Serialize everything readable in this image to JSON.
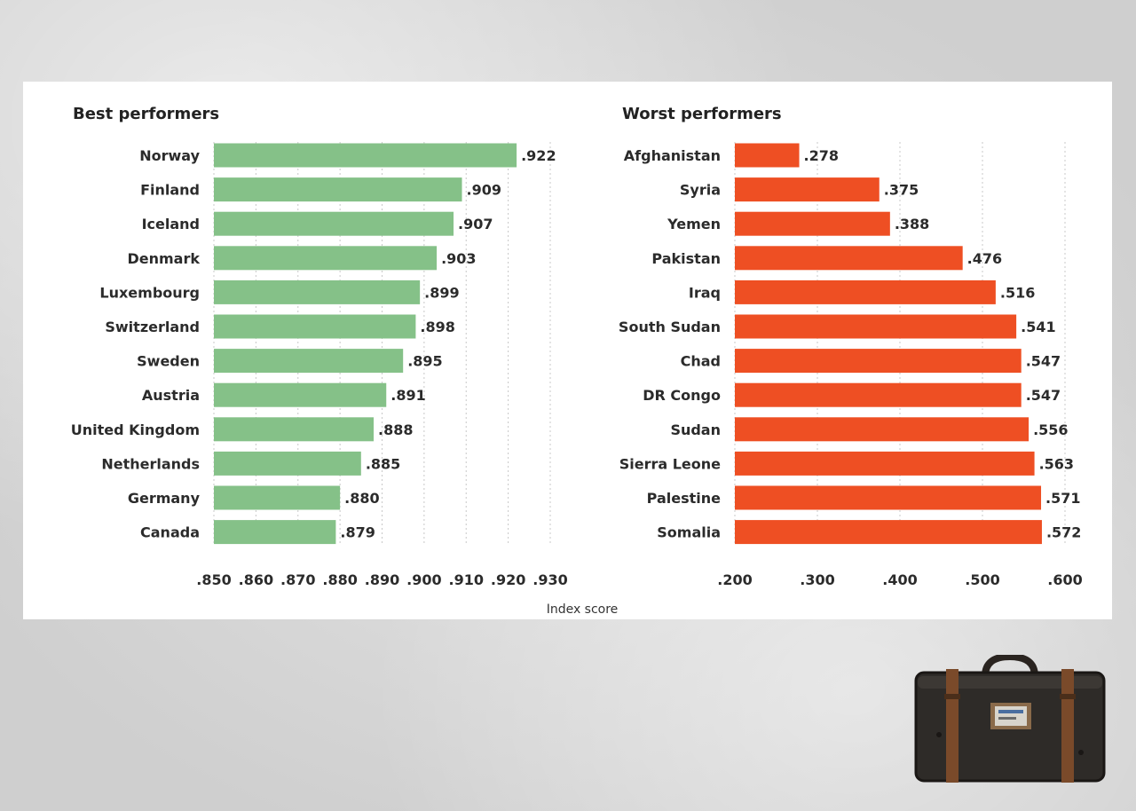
{
  "colors": {
    "best": "#85c188",
    "worst": "#ee4f23"
  },
  "chart_data": [
    {
      "type": "bar",
      "orientation": "horizontal",
      "title": "Best performers",
      "categories": [
        "Norway",
        "Finland",
        "Iceland",
        "Denmark",
        "Luxembourg",
        "Switzerland",
        "Sweden",
        "Austria",
        "United Kingdom",
        "Netherlands",
        "Germany",
        "Canada"
      ],
      "values": [
        0.922,
        0.909,
        0.907,
        0.903,
        0.899,
        0.898,
        0.895,
        0.891,
        0.888,
        0.885,
        0.88,
        0.879
      ],
      "value_labels": [
        ".922",
        ".909",
        ".907",
        ".903",
        ".899",
        ".898",
        ".895",
        ".891",
        ".888",
        ".885",
        ".880",
        ".879"
      ],
      "xlim": [
        0.85,
        0.93
      ],
      "xticks": [
        0.85,
        0.86,
        0.87,
        0.88,
        0.89,
        0.9,
        0.91,
        0.92,
        0.93
      ],
      "xtick_labels": [
        ".850",
        ".860",
        ".870",
        ".880",
        ".890",
        ".900",
        ".910",
        ".920",
        ".930"
      ],
      "grid": true
    },
    {
      "type": "bar",
      "orientation": "horizontal",
      "title": "Worst performers",
      "categories": [
        "Afghanistan",
        "Syria",
        "Yemen",
        "Pakistan",
        "Iraq",
        "South Sudan",
        "Chad",
        "DR Congo",
        "Sudan",
        "Sierra Leone",
        "Palestine",
        "Somalia"
      ],
      "values": [
        0.278,
        0.375,
        0.388,
        0.476,
        0.516,
        0.541,
        0.547,
        0.547,
        0.556,
        0.563,
        0.571,
        0.572
      ],
      "value_labels": [
        ".278",
        ".375",
        ".388",
        ".476",
        ".516",
        ".541",
        ".547",
        ".547",
        ".556",
        ".563",
        ".571",
        ".572"
      ],
      "xlim": [
        0.2,
        0.6
      ],
      "xticks": [
        0.2,
        0.3,
        0.4,
        0.5,
        0.6
      ],
      "xtick_labels": [
        ".200",
        ".300",
        ".400",
        ".500",
        ".600"
      ],
      "grid": true
    }
  ],
  "axis_title": "Index score",
  "decoration": {
    "icon": "suitcase-icon"
  }
}
